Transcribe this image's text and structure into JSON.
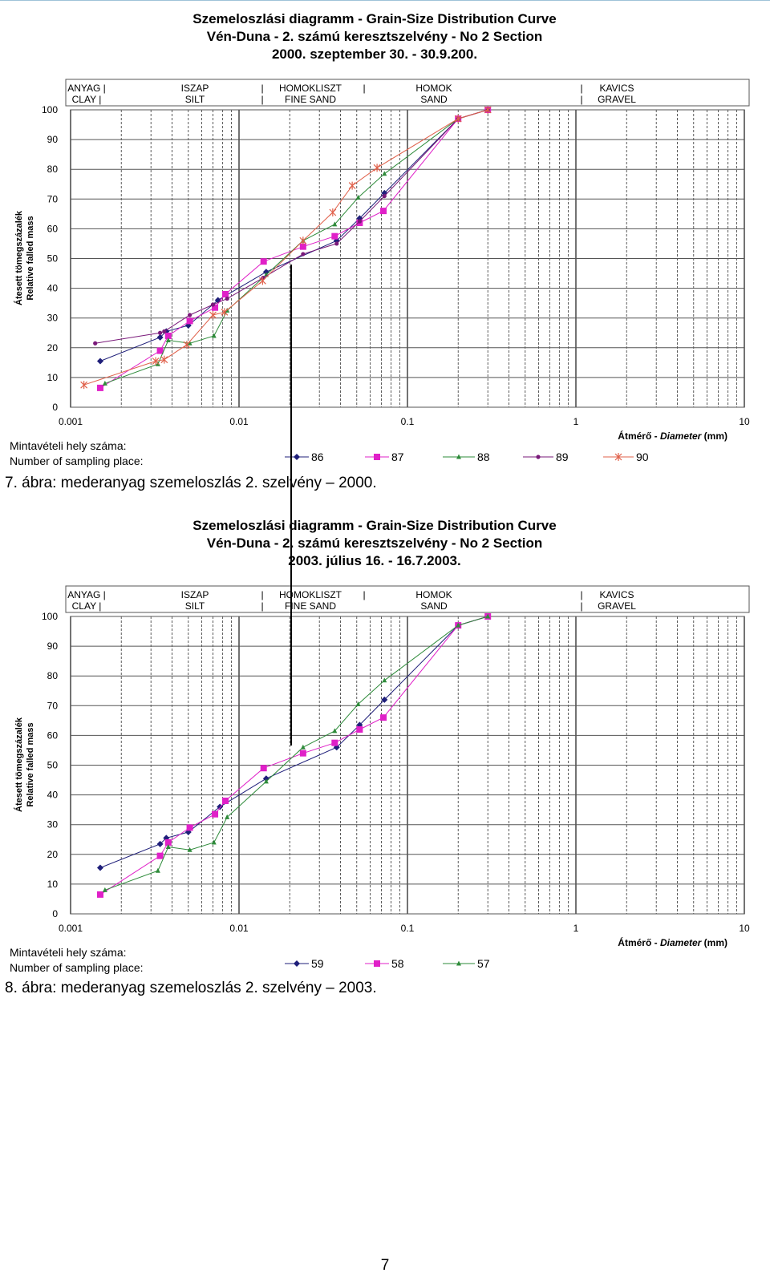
{
  "chart_data": [
    {
      "type": "scatter",
      "title": "Szemeloszlási diagramm - Grain-Size Distribution Curve",
      "subtitle": "Vén-Duna - 2. számú keresztszelvény - No 2 Section",
      "date": "2000. szeptember 30. - 30.9.200.",
      "ylabel": [
        "Átesett tömegszázalék",
        "Relative falled mass"
      ],
      "xlabel_prefix": "Átmérő - ",
      "xlabel_italic": "Diameter",
      "xlabel_unit": " (mm)",
      "xscale": "log",
      "xlim": [
        0.001,
        10
      ],
      "ylim": [
        0,
        100
      ],
      "x_ticks": [
        "0.001",
        "0.01",
        "0.1",
        "1",
        "10"
      ],
      "y_ticks": [
        "0",
        "10",
        "20",
        "30",
        "40",
        "50",
        "60",
        "70",
        "80",
        "90",
        "100"
      ],
      "grid": true,
      "zones": [
        {
          "name_hu": "ANYAG |",
          "name_en": "CLAY |"
        },
        {
          "name_hu": "ISZAP",
          "name_en": "SILT"
        },
        {
          "name_hu": "|",
          "name_en": "|"
        },
        {
          "name_hu": "HOMOKLISZT",
          "name_en": "FINE SAND"
        },
        {
          "name_hu": "|",
          "name_en": ""
        },
        {
          "name_hu": "HOMOK",
          "name_en": "SAND"
        },
        {
          "name_hu": "|",
          "name_en": "|"
        },
        {
          "name_hu": "KAVICS",
          "name_en": "GRAVEL"
        }
      ],
      "legend_title": [
        "Mintavételi hely száma:",
        "Number of sampling place:"
      ],
      "series": [
        {
          "name": "86",
          "color": "#1f1f7a",
          "marker": "diamond",
          "x": [
            0.0015,
            0.0034,
            0.0037,
            0.005,
            0.0075,
            0.0145,
            0.038,
            0.052,
            0.073,
            0.2,
            0.3
          ],
          "y": [
            15.5,
            23.5,
            25.5,
            27.5,
            36,
            45.5,
            56,
            63.5,
            72,
            97,
            100
          ]
        },
        {
          "name": "87",
          "color": "#e020c8",
          "marker": "square",
          "x": [
            0.0015,
            0.0034,
            0.0038,
            0.0051,
            0.0072,
            0.0083,
            0.014,
            0.024,
            0.037,
            0.052,
            0.072,
            0.2,
            0.3
          ],
          "y": [
            6.5,
            19,
            24,
            29,
            33.5,
            38,
            49,
            54,
            57.5,
            62,
            66,
            97,
            100
          ]
        },
        {
          "name": "88",
          "color": "#2e8b3a",
          "marker": "triangle",
          "x": [
            0.0016,
            0.0033,
            0.0038,
            0.0051,
            0.0071,
            0.0085,
            0.0145,
            0.024,
            0.037,
            0.051,
            0.073,
            0.2,
            0.3
          ],
          "y": [
            8,
            14.5,
            22.5,
            21.5,
            24,
            32.5,
            44.5,
            56,
            61.5,
            70.5,
            78.5,
            97,
            100
          ]
        },
        {
          "name": "89",
          "color": "#7a1a7a",
          "marker": "dot",
          "x": [
            0.0014,
            0.0034,
            0.0036,
            0.0051,
            0.007,
            0.0085,
            0.0139,
            0.024,
            0.038,
            0.052,
            0.073,
            0.2,
            0.3
          ],
          "y": [
            21.5,
            25,
            25.5,
            31,
            34.5,
            36.5,
            43.5,
            51.5,
            55,
            62.5,
            71,
            97,
            100
          ]
        },
        {
          "name": "90",
          "color": "#e0604a",
          "marker": "star",
          "x": [
            0.0012,
            0.0032,
            0.0036,
            0.0049,
            0.007,
            0.0082,
            0.0138,
            0.024,
            0.036,
            0.047,
            0.066,
            0.2,
            0.3
          ],
          "y": [
            7.5,
            15.5,
            16,
            21,
            31,
            32,
            42.5,
            56,
            65.5,
            74.5,
            80.5,
            97,
            100
          ]
        }
      ]
    },
    {
      "type": "scatter",
      "title": "Szemeloszlási diagramm - Grain-Size Distribution Curve",
      "subtitle": "Vén-Duna - 2. számú keresztszelvény - No 2 Section",
      "date": "2003. július 16. - 16.7.2003.",
      "ylabel": [
        "Átesett tömegszázalék",
        "Relative falled mass"
      ],
      "xlabel_prefix": "Átmérő - ",
      "xlabel_italic": "Diameter",
      "xlabel_unit": " (mm)",
      "xscale": "log",
      "xlim": [
        0.001,
        10
      ],
      "ylim": [
        0,
        100
      ],
      "x_ticks": [
        "0.001",
        "0.01",
        "0.1",
        "1",
        "10"
      ],
      "y_ticks": [
        "0",
        "10",
        "20",
        "30",
        "40",
        "50",
        "60",
        "70",
        "80",
        "90",
        "100"
      ],
      "grid": true,
      "zones": [
        {
          "name_hu": "ANYAG |",
          "name_en": "CLAY |"
        },
        {
          "name_hu": "ISZAP",
          "name_en": "SILT"
        },
        {
          "name_hu": "|",
          "name_en": "|"
        },
        {
          "name_hu": "HOMOKLISZT",
          "name_en": "FINE SAND"
        },
        {
          "name_hu": "|",
          "name_en": ""
        },
        {
          "name_hu": "HOMOK",
          "name_en": "SAND"
        },
        {
          "name_hu": "|",
          "name_en": "|"
        },
        {
          "name_hu": "KAVICS",
          "name_en": "GRAVEL"
        }
      ],
      "legend_title": [
        "Mintavételi hely száma:",
        "Number of sampling place:"
      ],
      "series": [
        {
          "name": "59",
          "color": "#1f1f7a",
          "marker": "diamond",
          "x": [
            0.0015,
            0.0034,
            0.0037,
            0.005,
            0.0077,
            0.0145,
            0.038,
            0.052,
            0.073,
            0.2,
            0.3
          ],
          "y": [
            15.5,
            23.5,
            25.5,
            27.5,
            36,
            45.5,
            56,
            63.5,
            72,
            97,
            100
          ]
        },
        {
          "name": "58",
          "color": "#e020c8",
          "marker": "square",
          "x": [
            0.0015,
            0.0034,
            0.0038,
            0.0051,
            0.0072,
            0.0083,
            0.014,
            0.024,
            0.037,
            0.052,
            0.072,
            0.2,
            0.3
          ],
          "y": [
            6.5,
            19.5,
            24,
            29,
            33.5,
            38,
            49,
            54,
            57.5,
            62,
            66,
            97,
            100
          ]
        },
        {
          "name": "57",
          "color": "#2e8b3a",
          "marker": "triangle",
          "x": [
            0.0016,
            0.0033,
            0.0038,
            0.0051,
            0.0071,
            0.0085,
            0.0145,
            0.024,
            0.037,
            0.051,
            0.073,
            0.2,
            0.3
          ],
          "y": [
            8,
            14.5,
            22.5,
            21.5,
            24,
            32.5,
            44.5,
            56,
            61.5,
            70.5,
            78.5,
            97,
            100
          ]
        }
      ]
    }
  ],
  "captions": [
    "7. ábra: mederanyag szemeloszlás 2. szelvény – 2000.",
    "8. ábra: mederanyag szemeloszlás 2. szelvény – 2003."
  ],
  "page_number": "7"
}
